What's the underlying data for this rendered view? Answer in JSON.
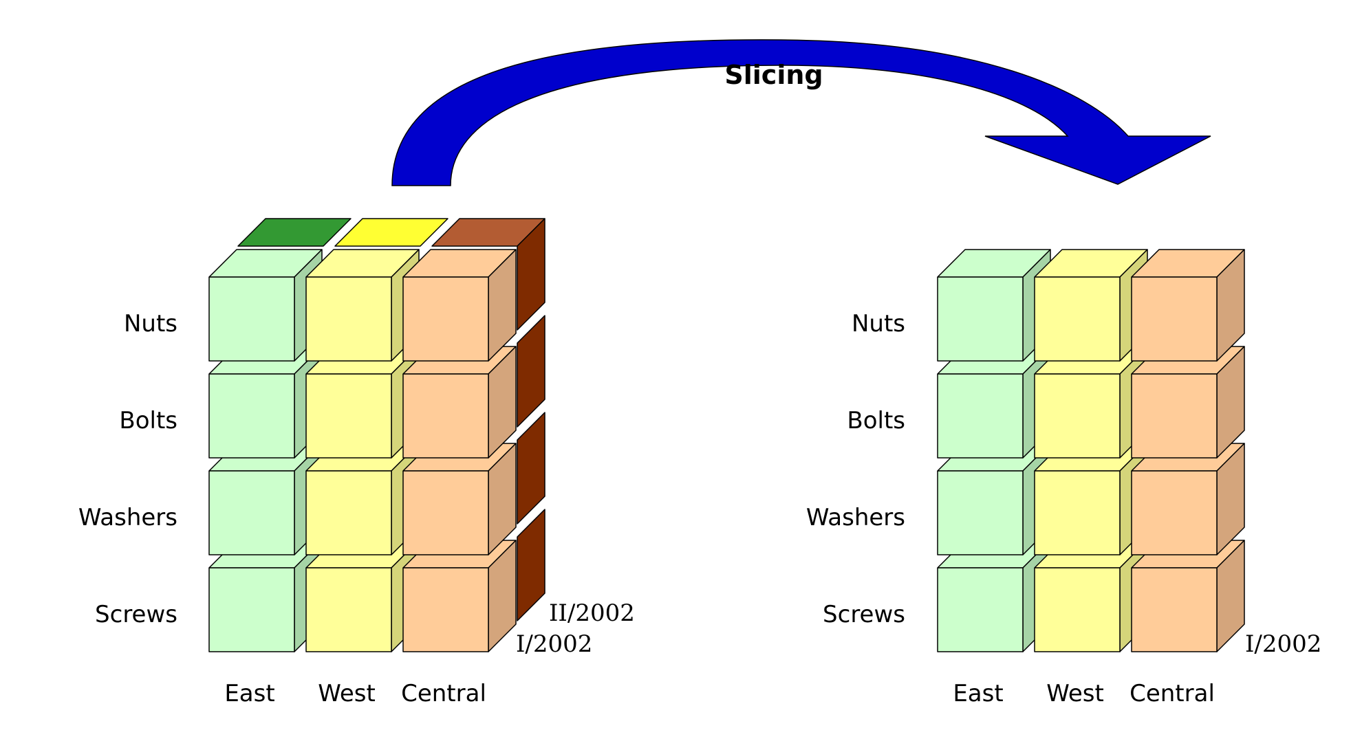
{
  "title": "Slicing",
  "rows": [
    "Nuts",
    "Bolts",
    "Washers",
    "Screws"
  ],
  "columns": [
    "East",
    "West",
    "Central"
  ],
  "periods": {
    "front": "I/2002",
    "back": "II/2002"
  },
  "colors": {
    "arrow": "#0000cc",
    "front_faces": [
      "#ccffcc",
      "#ffff99",
      "#ffcc99"
    ],
    "side_faces": [
      "#a6d4a6",
      "#d5d57a",
      "#d4a57c"
    ],
    "back_tops": [
      "#339933",
      "#ffff33",
      "#b35c33"
    ],
    "back_side": "#7f2b00",
    "outline": "#000000"
  }
}
